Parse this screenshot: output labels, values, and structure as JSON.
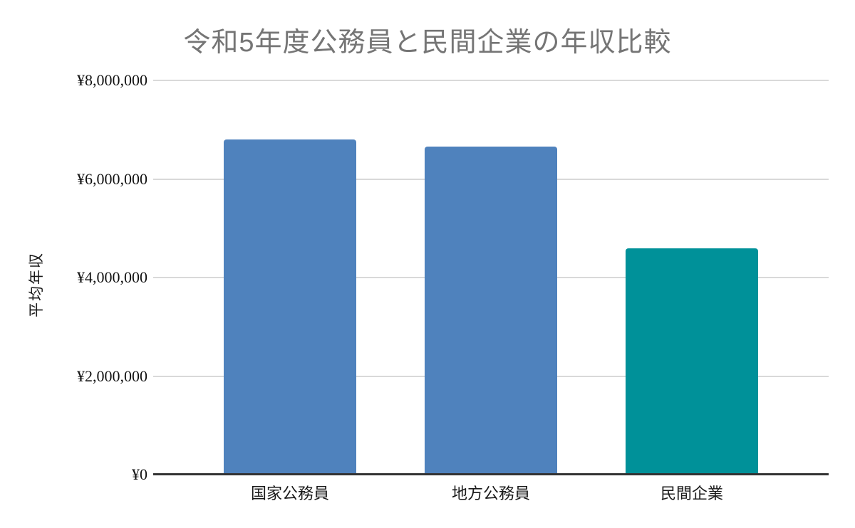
{
  "chart_data": {
    "type": "bar",
    "title": "令和5年度公務員と民間企業の年収比較",
    "categories": [
      "国家公務員",
      "地方公務員",
      "民間企業"
    ],
    "values": [
      6800000,
      6660000,
      4590000
    ],
    "bar_colors": [
      "#4F82BD",
      "#4F82BD",
      "#009199"
    ],
    "xlabel": "",
    "ylabel": "平均年収",
    "ylim": [
      0,
      8000000
    ],
    "ytick_interval": 2000000,
    "yticks": [
      {
        "value": 8000000,
        "label": "¥8,000,000"
      },
      {
        "value": 6000000,
        "label": "¥6,000,000"
      },
      {
        "value": 4000000,
        "label": "¥4,000,000"
      },
      {
        "value": 2000000,
        "label": "¥2,000,000"
      },
      {
        "value": 0,
        "label": "¥0"
      }
    ],
    "grid": "horizontal-only",
    "legend": "none",
    "colors": {
      "title_text": "#757575",
      "gridline": "#d9d9d9",
      "axis_line": "#333333",
      "tick_text": "#1a1a1a",
      "bar_blue": "#4F82BD",
      "bar_teal": "#009199"
    }
  }
}
